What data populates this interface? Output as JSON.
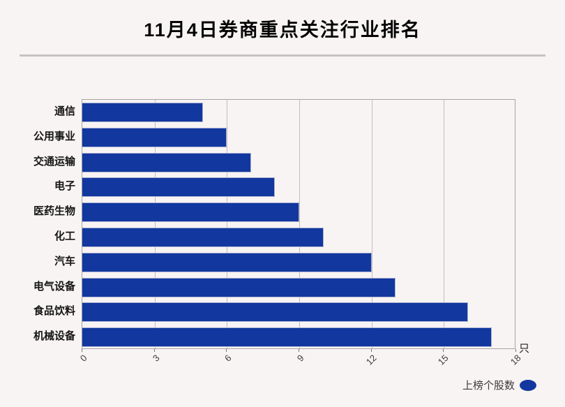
{
  "title": "11月4日券商重点关注行业排名",
  "legend": {
    "label": "上榜个股数"
  },
  "axis": {
    "unit_label": "只"
  },
  "colors": {
    "background": "#f8f4f3",
    "bar": "#12379e",
    "gridline": "#c2bebd",
    "plot_border": "#a8a4a3",
    "divider": "#c6c2c1"
  },
  "chart_data": {
    "type": "bar",
    "orientation": "horizontal",
    "title": "11月4日券商重点关注行业排名",
    "categories": [
      "通信",
      "公用事业",
      "交通运输",
      "电子",
      "医药生物",
      "化工",
      "汽车",
      "电气设备",
      "食品饮料",
      "机械设备"
    ],
    "values": [
      5,
      6,
      7,
      8,
      9,
      10,
      12,
      13,
      16,
      17
    ],
    "series_name": "上榜个股数",
    "unit": "只",
    "xlim": [
      0,
      18
    ],
    "xticks": [
      0,
      3,
      6,
      9,
      12,
      15,
      18
    ],
    "xtick_rotation_deg": 45,
    "grid": true,
    "legend_position": "bottom-right",
    "bar_color": "#12379e"
  }
}
